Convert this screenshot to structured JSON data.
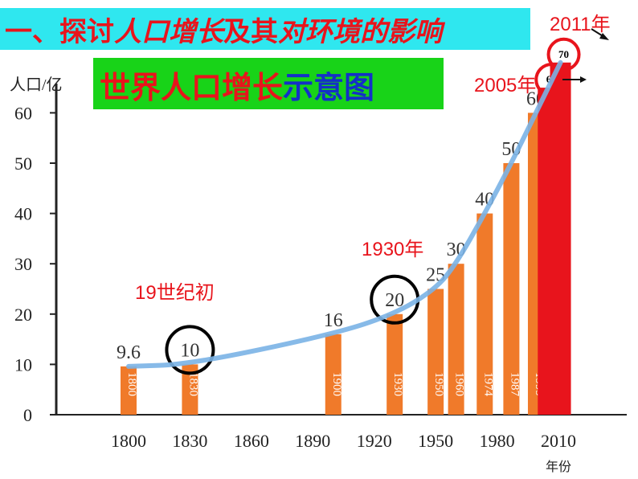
{
  "header": {
    "title_prefix": "一、探讨",
    "title_italic": "人口增长",
    "title_mid": "及其",
    "title_suffix": "对环境的影响"
  },
  "subtitle": {
    "red_part": "世界人口增长",
    "blue_part": "示意图"
  },
  "annotations": {
    "early_19th": "19世纪初",
    "y1930": "1930年",
    "y2005": "2005年",
    "y2011": "2011年"
  },
  "colors": {
    "bar": "#f07a2a",
    "highlight_bar": "#e8141c",
    "curve": "#7ab3e6",
    "circle_black": "#000000",
    "circle_red": "#e8141c"
  },
  "chart_data": {
    "type": "bar",
    "ylabel": "人口/亿",
    "xlabel": "年份",
    "ylim": [
      0,
      70
    ],
    "yticks": [
      0,
      10,
      20,
      30,
      40,
      50,
      60
    ],
    "xticks": [
      "1800",
      "1830",
      "1860",
      "1890",
      "1920",
      "1950",
      "1980",
      "2010"
    ],
    "bars": [
      {
        "year": 1800,
        "value": 9.6,
        "label": "9.6",
        "bar_text": "1800"
      },
      {
        "year": 1830,
        "value": 10,
        "label": "10",
        "bar_text": "1830"
      },
      {
        "year": 1900,
        "value": 16,
        "label": "16",
        "bar_text": "1900"
      },
      {
        "year": 1930,
        "value": 20,
        "label": "20",
        "bar_text": "1930"
      },
      {
        "year": 1950,
        "value": 25,
        "label": "25",
        "bar_text": "1950"
      },
      {
        "year": 1960,
        "value": 30,
        "label": "30",
        "bar_text": "1960"
      },
      {
        "year": 1974,
        "value": 40,
        "label": "40",
        "bar_text": "1974"
      },
      {
        "year": 1987,
        "value": 50,
        "label": "50",
        "bar_text": "1987"
      },
      {
        "year": 1999,
        "value": 60,
        "label": "60",
        "bar_text": "1999"
      },
      {
        "year": 2005,
        "value": 65,
        "label": "65",
        "bar_text": "",
        "highlight": true
      },
      {
        "year": 2011,
        "value": 70,
        "label": "70",
        "bar_text": "",
        "highlight": true
      }
    ],
    "circled_labels": [
      "10",
      "20"
    ],
    "red_circled_labels": [
      "65",
      "70"
    ]
  }
}
